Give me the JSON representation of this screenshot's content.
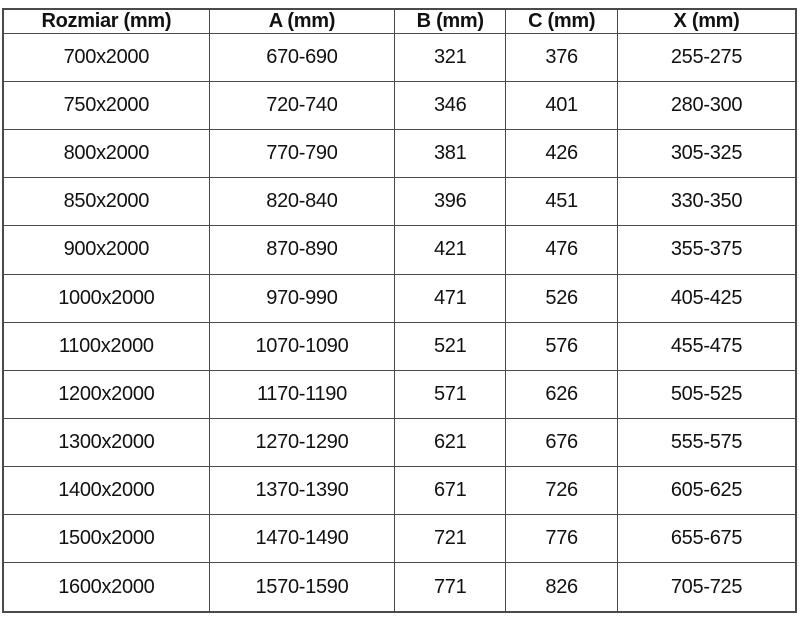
{
  "page": {
    "background_color": "#ffffff"
  },
  "table": {
    "border_color": "#4a4a4a",
    "text_color": "#111111",
    "header": {
      "rozmiar": "Rozmiar (mm)",
      "a": "A (mm)",
      "b": "B (mm)",
      "c": "C (mm)",
      "x": "X (mm)"
    },
    "rows": [
      [
        "700x2000",
        "670-690",
        "321",
        "376",
        "255-275"
      ],
      [
        "750x2000",
        "720-740",
        "346",
        "401",
        "280-300"
      ],
      [
        "800x2000",
        "770-790",
        "381",
        "426",
        "305-325"
      ],
      [
        "850x2000",
        "820-840",
        "396",
        "451",
        "330-350"
      ],
      [
        "900x2000",
        "870-890",
        "421",
        "476",
        "355-375"
      ],
      [
        "1000x2000",
        "970-990",
        "471",
        "526",
        "405-425"
      ],
      [
        "1100x2000",
        "1070-1090",
        "521",
        "576",
        "455-475"
      ],
      [
        "1200x2000",
        "1170-1190",
        "571",
        "626",
        "505-525"
      ],
      [
        "1300x2000",
        "1270-1290",
        "621",
        "676",
        "555-575"
      ],
      [
        "1400x2000",
        "1370-1390",
        "671",
        "726",
        "605-625"
      ],
      [
        "1500x2000",
        "1470-1490",
        "721",
        "776",
        "655-675"
      ],
      [
        "1600x2000",
        "1570-1590",
        "771",
        "826",
        "705-725"
      ]
    ]
  }
}
